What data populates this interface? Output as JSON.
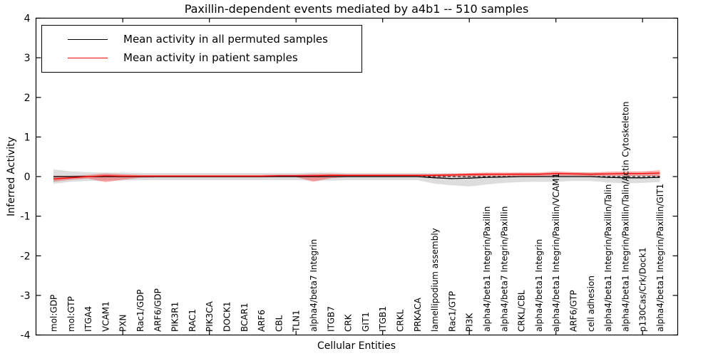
{
  "figure": {
    "title": "Paxillin-dependent events mediated by a4b1 -- 510 samples",
    "xlabel": "Cellular Entities",
    "ylabel": "Inferred Activity"
  },
  "legend": {
    "position": "upper left",
    "entries": [
      {
        "label": "Mean activity in all permuted samples",
        "color": "#000000"
      },
      {
        "label": "Mean activity in patient samples",
        "color": "#ff0000"
      }
    ]
  },
  "chart_data": {
    "type": "line",
    "title": "Paxillin-dependent events mediated by a4b1 -- 510 samples",
    "xlabel": "Cellular Entities",
    "ylabel": "Inferred Activity",
    "ylim": [
      -4,
      4
    ],
    "yticks": [
      -4,
      -3,
      -2,
      -1,
      0,
      1,
      2,
      3,
      4
    ],
    "x_major_tick_indices": [
      4,
      9,
      14,
      19,
      24,
      29,
      34
    ],
    "grid": false,
    "legend_position": "upper left",
    "zero_line": {
      "value": 0,
      "style": "dashed",
      "color": "#000000"
    },
    "categories": [
      "mol:GDP",
      "mol:GTP",
      "ITGA4",
      "VCAM1",
      "PXN",
      "Rac1/GDP",
      "ARF6/GDP",
      "PIK3R1",
      "RAC1",
      "PIK3CA",
      "DOCK1",
      "BCAR1",
      "ARF6",
      "CBL",
      "TLN1",
      "alpha4/beta7 Integrin",
      "ITGB7",
      "CRK",
      "GIT1",
      "ITGB1",
      "CRKL",
      "PRKACA",
      "lamellipodium assembly",
      "Rac1/GTP",
      "PI3K",
      "alpha4/beta1 Integrin/Paxillin",
      "alpha4/beta7 Integrin/Paxillin",
      "CRKL/CBL",
      "alpha4/beta1 Integrin",
      "alpha4/beta1 Integrin/Paxillin/VCAM1",
      "ARF6/GTP",
      "cell adhesion",
      "alpha4/beta1 Integrin/Paxillin/Talin",
      "alpha4/beta1 Integrin/Paxillin/Talin/Actin Cytoskeleton",
      "p130Cas/Crk/Dock1",
      "alpha4/beta1 Integrin/Paxillin/GIT1"
    ],
    "series": [
      {
        "name": "Mean activity in all permuted samples",
        "color": "#000000",
        "values": [
          0,
          0,
          0,
          0,
          0,
          0,
          0,
          0,
          0,
          0,
          0,
          0,
          0,
          0,
          0,
          0,
          0,
          0,
          0,
          0,
          0,
          0,
          -0.03,
          -0.05,
          -0.04,
          -0.02,
          -0.01,
          0,
          0,
          0,
          0,
          0,
          -0.02,
          -0.03,
          -0.03,
          -0.02
        ]
      },
      {
        "name": "Mean activity in patient samples",
        "color": "#ff0000",
        "values": [
          -0.06,
          -0.03,
          0,
          0.02,
          0.01,
          0.01,
          0.01,
          0.01,
          0.01,
          0.01,
          0.01,
          0.01,
          0.01,
          0.02,
          0.02,
          0.02,
          0.03,
          0.03,
          0.03,
          0.03,
          0.03,
          0.03,
          0.03,
          0.04,
          0.05,
          0.06,
          0.06,
          0.06,
          0.06,
          0.08,
          0.07,
          0.06,
          0.07,
          0.08,
          0.08,
          0.09
        ]
      }
    ],
    "bands": [
      {
        "name": "permuted-samples-range",
        "color": "#bbbbbb",
        "opacity": 0.5,
        "upper": [
          0.18,
          0.13,
          0.11,
          0.1,
          0.1,
          0.09,
          0.09,
          0.09,
          0.09,
          0.09,
          0.09,
          0.09,
          0.09,
          0.09,
          0.09,
          0.1,
          0.1,
          0.09,
          0.09,
          0.09,
          0.09,
          0.09,
          0.08,
          0.08,
          0.08,
          0.08,
          0.08,
          0.1,
          0.09,
          0.09,
          0.1,
          0.1,
          0.08,
          0.08,
          0.08,
          0.09
        ],
        "lower": [
          -0.18,
          -0.13,
          -0.11,
          -0.1,
          -0.1,
          -0.09,
          -0.09,
          -0.09,
          -0.09,
          -0.09,
          -0.09,
          -0.09,
          -0.09,
          -0.09,
          -0.09,
          -0.1,
          -0.1,
          -0.09,
          -0.09,
          -0.09,
          -0.09,
          -0.09,
          -0.18,
          -0.22,
          -0.25,
          -0.2,
          -0.16,
          -0.14,
          -0.13,
          -0.13,
          -0.11,
          -0.11,
          -0.15,
          -0.17,
          -0.16,
          -0.14
        ]
      },
      {
        "name": "patient-samples-range",
        "color": "#ff0000",
        "opacity": 0.33,
        "upper": [
          0.02,
          0.02,
          0.04,
          0.08,
          0.06,
          0.04,
          0.04,
          0.04,
          0.04,
          0.04,
          0.04,
          0.04,
          0.04,
          0.05,
          0.05,
          0.07,
          0.07,
          0.06,
          0.06,
          0.06,
          0.06,
          0.06,
          0.07,
          0.08,
          0.09,
          0.1,
          0.1,
          0.1,
          0.1,
          0.13,
          0.11,
          0.1,
          0.12,
          0.13,
          0.13,
          0.16
        ],
        "lower": [
          -0.13,
          -0.08,
          -0.05,
          -0.14,
          -0.08,
          -0.03,
          -0.02,
          -0.02,
          -0.02,
          -0.02,
          -0.02,
          -0.02,
          -0.02,
          -0.01,
          -0.01,
          -0.13,
          -0.04,
          -0.01,
          -0.01,
          -0.01,
          -0.01,
          -0.01,
          -0.01,
          0.0,
          0.0,
          0.01,
          0.01,
          0.01,
          0.01,
          0.02,
          0.02,
          0.01,
          0.02,
          0.02,
          0.02,
          0.01
        ]
      }
    ]
  }
}
